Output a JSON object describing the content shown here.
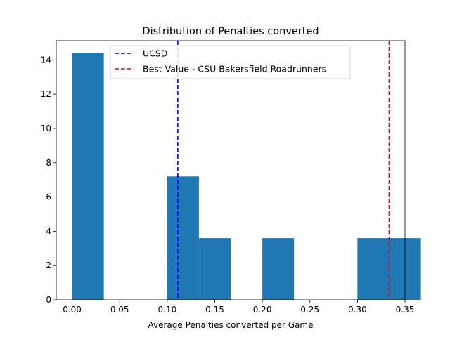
{
  "chart_data": {
    "type": "bar",
    "title": "Distribution of Penalties converted",
    "xlabel": "Average Penalties converted per Game",
    "ylabel": "",
    "xlim": [
      -0.0167,
      0.35
    ],
    "ylim": [
      0,
      15.12
    ],
    "x_ticks": [
      "0.00",
      "0.05",
      "0.10",
      "0.15",
      "0.20",
      "0.25",
      "0.30",
      "0.35"
    ],
    "y_ticks": [
      "0",
      "2",
      "4",
      "6",
      "8",
      "10",
      "12",
      "14"
    ],
    "bins": [
      {
        "x0": 0.0,
        "x1": 0.0333,
        "value": 14.4
      },
      {
        "x0": 0.0333,
        "x1": 0.0667,
        "value": 0
      },
      {
        "x0": 0.0667,
        "x1": 0.1,
        "value": 0
      },
      {
        "x0": 0.1,
        "x1": 0.1333,
        "value": 7.2
      },
      {
        "x0": 0.1333,
        "x1": 0.1667,
        "value": 3.6
      },
      {
        "x0": 0.1667,
        "x1": 0.2,
        "value": 0
      },
      {
        "x0": 0.2,
        "x1": 0.2333,
        "value": 3.6
      },
      {
        "x0": 0.2333,
        "x1": 0.2667,
        "value": 0
      },
      {
        "x0": 0.2667,
        "x1": 0.3,
        "value": 0
      },
      {
        "x0": 0.3,
        "x1": 0.3333,
        "value": 3.6
      },
      {
        "x0": 0.3333,
        "x1": 0.3667,
        "value": 3.6
      }
    ],
    "bar_color": "#1f77b4",
    "reference_lines": [
      {
        "name": "UCSD",
        "x": 0.1111,
        "color": "#0000ff"
      },
      {
        "name": "Best Value - CSU Bakersfield Roadrunners",
        "x": 0.3333,
        "color": "#ff0000"
      }
    ],
    "legend_position": "top-center",
    "grid": false
  }
}
